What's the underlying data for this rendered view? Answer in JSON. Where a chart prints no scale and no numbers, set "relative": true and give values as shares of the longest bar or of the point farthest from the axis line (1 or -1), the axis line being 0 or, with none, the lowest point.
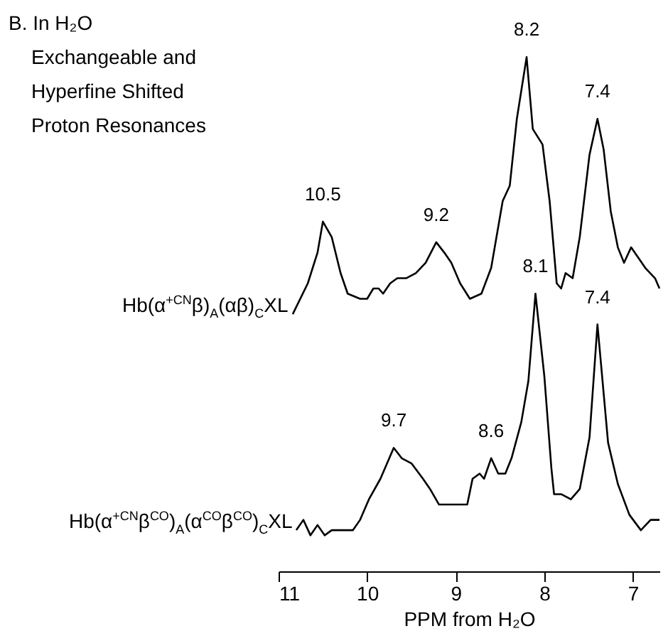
{
  "chart_data": {
    "type": "line",
    "title": "B. In H₂O",
    "subtitle": "Exchangeable and Hyperfine Shifted Proton Resonances",
    "xlabel": "PPM from H₂O",
    "relative": true,
    "xlim": [
      11,
      6.7
    ],
    "xticks": [
      11,
      10,
      9,
      8,
      7
    ],
    "marker": "none",
    "line_style": "solid",
    "grid": false,
    "series": [
      {
        "name": "Hb(α$^{+CN}$β)$_{A}$(αβ)$_{C}$XL",
        "color": "#000000",
        "x": [
          10.84,
          10.67,
          10.56,
          10.5,
          10.4,
          10.3,
          10.22,
          10.08,
          10.0,
          9.93,
          9.87,
          9.82,
          9.74,
          9.66,
          9.56,
          9.45,
          9.34,
          9.22,
          9.13,
          9.05,
          8.95,
          8.84,
          8.71,
          8.6,
          8.47,
          8.39,
          8.31,
          8.2,
          8.13,
          8.02,
          7.94,
          7.86,
          7.81,
          7.76,
          7.68,
          7.6,
          7.49,
          7.4,
          7.33,
          7.25,
          7.17,
          7.1,
          7.02,
          6.94,
          6.86,
          6.75,
          6.7
        ],
        "values": [
          0.5,
          0.56,
          0.62,
          0.68,
          0.65,
          0.58,
          0.54,
          0.53,
          0.53,
          0.55,
          0.55,
          0.54,
          0.56,
          0.57,
          0.57,
          0.58,
          0.6,
          0.64,
          0.62,
          0.6,
          0.56,
          0.53,
          0.54,
          0.59,
          0.72,
          0.75,
          0.88,
          1.0,
          0.86,
          0.83,
          0.72,
          0.56,
          0.55,
          0.58,
          0.57,
          0.65,
          0.81,
          0.88,
          0.82,
          0.7,
          0.63,
          0.6,
          0.63,
          0.61,
          0.59,
          0.57,
          0.55
        ]
      },
      {
        "name": "Hb(α$^{+CN}$β$^{CO}$)$_{A}$(α$^{CO}$β$^{CO}$)$_{C}$XL",
        "color": "#000000",
        "x": [
          10.8,
          10.72,
          10.64,
          10.56,
          10.48,
          10.4,
          10.32,
          10.24,
          10.16,
          10.08,
          9.98,
          9.85,
          9.7,
          9.61,
          9.5,
          9.37,
          9.29,
          9.19,
          9.08,
          9.0,
          8.92,
          8.87,
          8.81,
          8.73,
          8.68,
          8.6,
          8.52,
          8.44,
          8.37,
          8.26,
          8.18,
          8.1,
          8.0,
          7.92,
          7.89,
          7.81,
          7.7,
          7.6,
          7.49,
          7.4,
          7.28,
          7.17,
          7.04,
          6.91,
          6.8,
          6.7
        ],
        "values": [
          0.08,
          0.1,
          0.07,
          0.09,
          0.07,
          0.08,
          0.08,
          0.08,
          0.08,
          0.1,
          0.14,
          0.18,
          0.24,
          0.22,
          0.21,
          0.18,
          0.16,
          0.13,
          0.13,
          0.13,
          0.13,
          0.13,
          0.18,
          0.19,
          0.18,
          0.22,
          0.19,
          0.19,
          0.22,
          0.29,
          0.37,
          0.54,
          0.38,
          0.2,
          0.15,
          0.15,
          0.14,
          0.16,
          0.26,
          0.48,
          0.25,
          0.17,
          0.11,
          0.08,
          0.1,
          0.1
        ]
      }
    ],
    "annotations": [
      {
        "text": "10.5",
        "x": 10.5,
        "y": 0.68
      },
      {
        "text": "9.2",
        "x": 9.22,
        "y": 0.64
      },
      {
        "text": "8.2",
        "x": 8.2,
        "y": 1.0
      },
      {
        "text": "7.4",
        "x": 7.4,
        "y": 0.88
      },
      {
        "text": "9.7",
        "x": 9.7,
        "y": 0.24
      },
      {
        "text": "8.6",
        "x": 8.6,
        "y": 0.22
      },
      {
        "text": "8.1",
        "x": 8.1,
        "y": 0.54
      },
      {
        "text": "7.4",
        "x": 7.4,
        "y": 0.48
      }
    ]
  }
}
